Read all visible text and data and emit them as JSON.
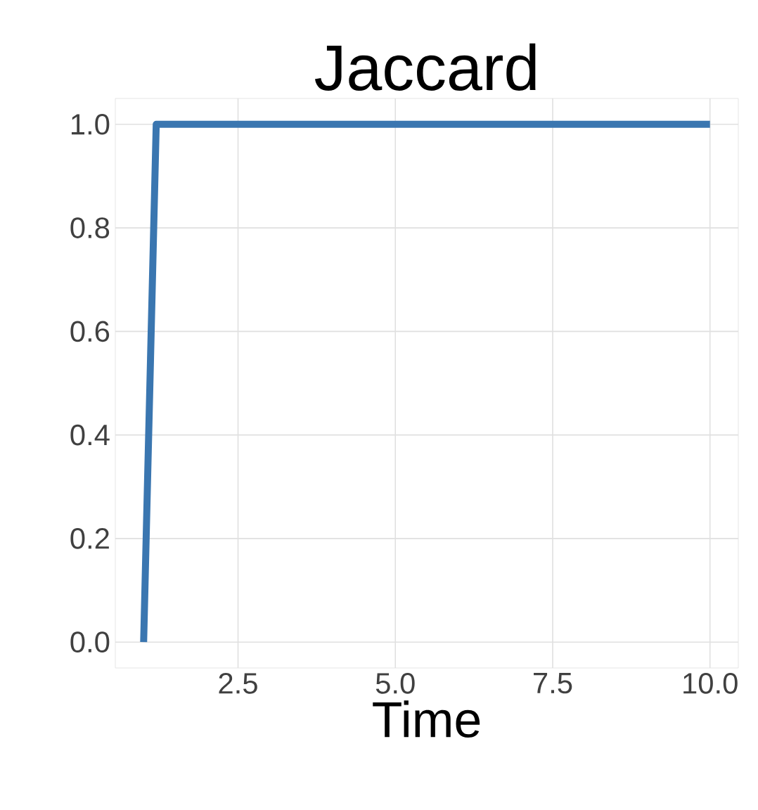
{
  "chart_data": {
    "type": "line",
    "title": "Jaccard",
    "xlabel": "Time",
    "x": [
      1,
      1.2,
      10
    ],
    "series": [
      {
        "color": "#3a76b0",
        "values": [
          0,
          1,
          1
        ]
      }
    ],
    "xlim": [
      0.55,
      10.45
    ],
    "ylim": [
      -0.05,
      1.05
    ],
    "xticks": [
      {
        "value": 2.5,
        "label": "2.5"
      },
      {
        "value": 5,
        "label": "5.0"
      },
      {
        "value": 7.5,
        "label": "7.5"
      },
      {
        "value": 10,
        "label": "10.0"
      }
    ],
    "yticks": [
      {
        "value": 0,
        "label": "0.0"
      },
      {
        "value": 0.2,
        "label": "0.2"
      },
      {
        "value": 0.4,
        "label": "0.4"
      },
      {
        "value": 0.6,
        "label": "0.6"
      },
      {
        "value": 0.8,
        "label": "0.8"
      },
      {
        "value": 1,
        "label": "1.0"
      }
    ],
    "grid": true,
    "marker": "none",
    "line_style": "solid"
  }
}
